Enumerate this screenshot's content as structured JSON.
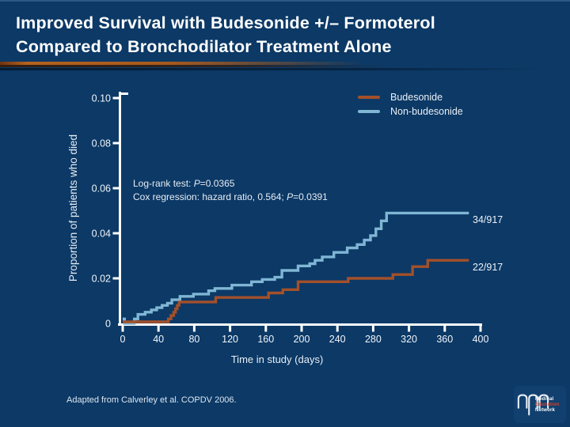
{
  "slide": {
    "title_lines": [
      "Improved Survival with Budesonide +/– Formoterol",
      "Compared to Bronchodilator Treatment Alone"
    ],
    "footer": "Adapted from Calverley et al. COPDV 2006.",
    "background_color": "#0c3966",
    "title_color": "#ffffff",
    "accent_bar_color": "#b4621e"
  },
  "annotation": {
    "line1_pre": "Log-rank test: ",
    "line1_p": "P",
    "line1_post": "=0.0365",
    "line2_pre": "Cox regression: hazard ratio, 0.564; ",
    "line2_p": "P",
    "line2_post": "=0.0391"
  },
  "logo": {
    "line1": "Medical",
    "line2": "Education",
    "line3": "Network"
  },
  "chart_data": {
    "type": "line",
    "subtype": "step-survival",
    "xlabel": "Time in study (days)",
    "ylabel": "Proportion of patients who died",
    "xlim": [
      0,
      400
    ],
    "ylim": [
      0,
      0.1
    ],
    "x_ticks": [
      0,
      40,
      80,
      120,
      160,
      200,
      240,
      280,
      320,
      360,
      400
    ],
    "y_ticks": [
      {
        "value": 0,
        "label": "0"
      },
      {
        "value": 0.02,
        "label": "0.02"
      },
      {
        "value": 0.04,
        "label": "0.04"
      },
      {
        "value": 0.06,
        "label": "0.06"
      },
      {
        "value": 0.08,
        "label": "0.08"
      },
      {
        "value": 0.1,
        "label": "0.10"
      }
    ],
    "grid": false,
    "legend_position": "top-right",
    "axis_color": "#ffffff",
    "series": [
      {
        "name": "Budesonide",
        "color": "#a3502a",
        "end_label": "22/917",
        "points": [
          [
            0,
            0.0007
          ],
          [
            51,
            0.002
          ],
          [
            54,
            0.0035
          ],
          [
            57,
            0.005
          ],
          [
            59,
            0.0065
          ],
          [
            61,
            0.008
          ],
          [
            63,
            0.0095
          ],
          [
            104,
            0.0115
          ],
          [
            163,
            0.0135
          ],
          [
            179,
            0.015
          ],
          [
            196,
            0.0185
          ],
          [
            252,
            0.02
          ],
          [
            302,
            0.0217
          ],
          [
            324,
            0.0252
          ],
          [
            341,
            0.028
          ],
          [
            387,
            0.028
          ]
        ]
      },
      {
        "name": "Non-budesonide",
        "color": "#7fb6d4",
        "end_label": "34/917",
        "points": [
          [
            0,
            0.002
          ],
          [
            2,
            0
          ],
          [
            11,
            0
          ],
          [
            13,
            0.002
          ],
          [
            17,
            0.004
          ],
          [
            25,
            0.005
          ],
          [
            32,
            0.006
          ],
          [
            38,
            0.007
          ],
          [
            44,
            0.008
          ],
          [
            50,
            0.009
          ],
          [
            55,
            0.0105
          ],
          [
            64,
            0.012
          ],
          [
            79,
            0.013
          ],
          [
            96,
            0.0145
          ],
          [
            103,
            0.0155
          ],
          [
            122,
            0.017
          ],
          [
            144,
            0.0185
          ],
          [
            156,
            0.0195
          ],
          [
            170,
            0.0205
          ],
          [
            178,
            0.0235
          ],
          [
            196,
            0.0255
          ],
          [
            209,
            0.0265
          ],
          [
            215,
            0.028
          ],
          [
            223,
            0.0295
          ],
          [
            236,
            0.0315
          ],
          [
            251,
            0.0335
          ],
          [
            262,
            0.035
          ],
          [
            270,
            0.037
          ],
          [
            277,
            0.039
          ],
          [
            283,
            0.042
          ],
          [
            289,
            0.0455
          ],
          [
            295,
            0.049
          ],
          [
            387,
            0.049
          ]
        ]
      }
    ]
  }
}
